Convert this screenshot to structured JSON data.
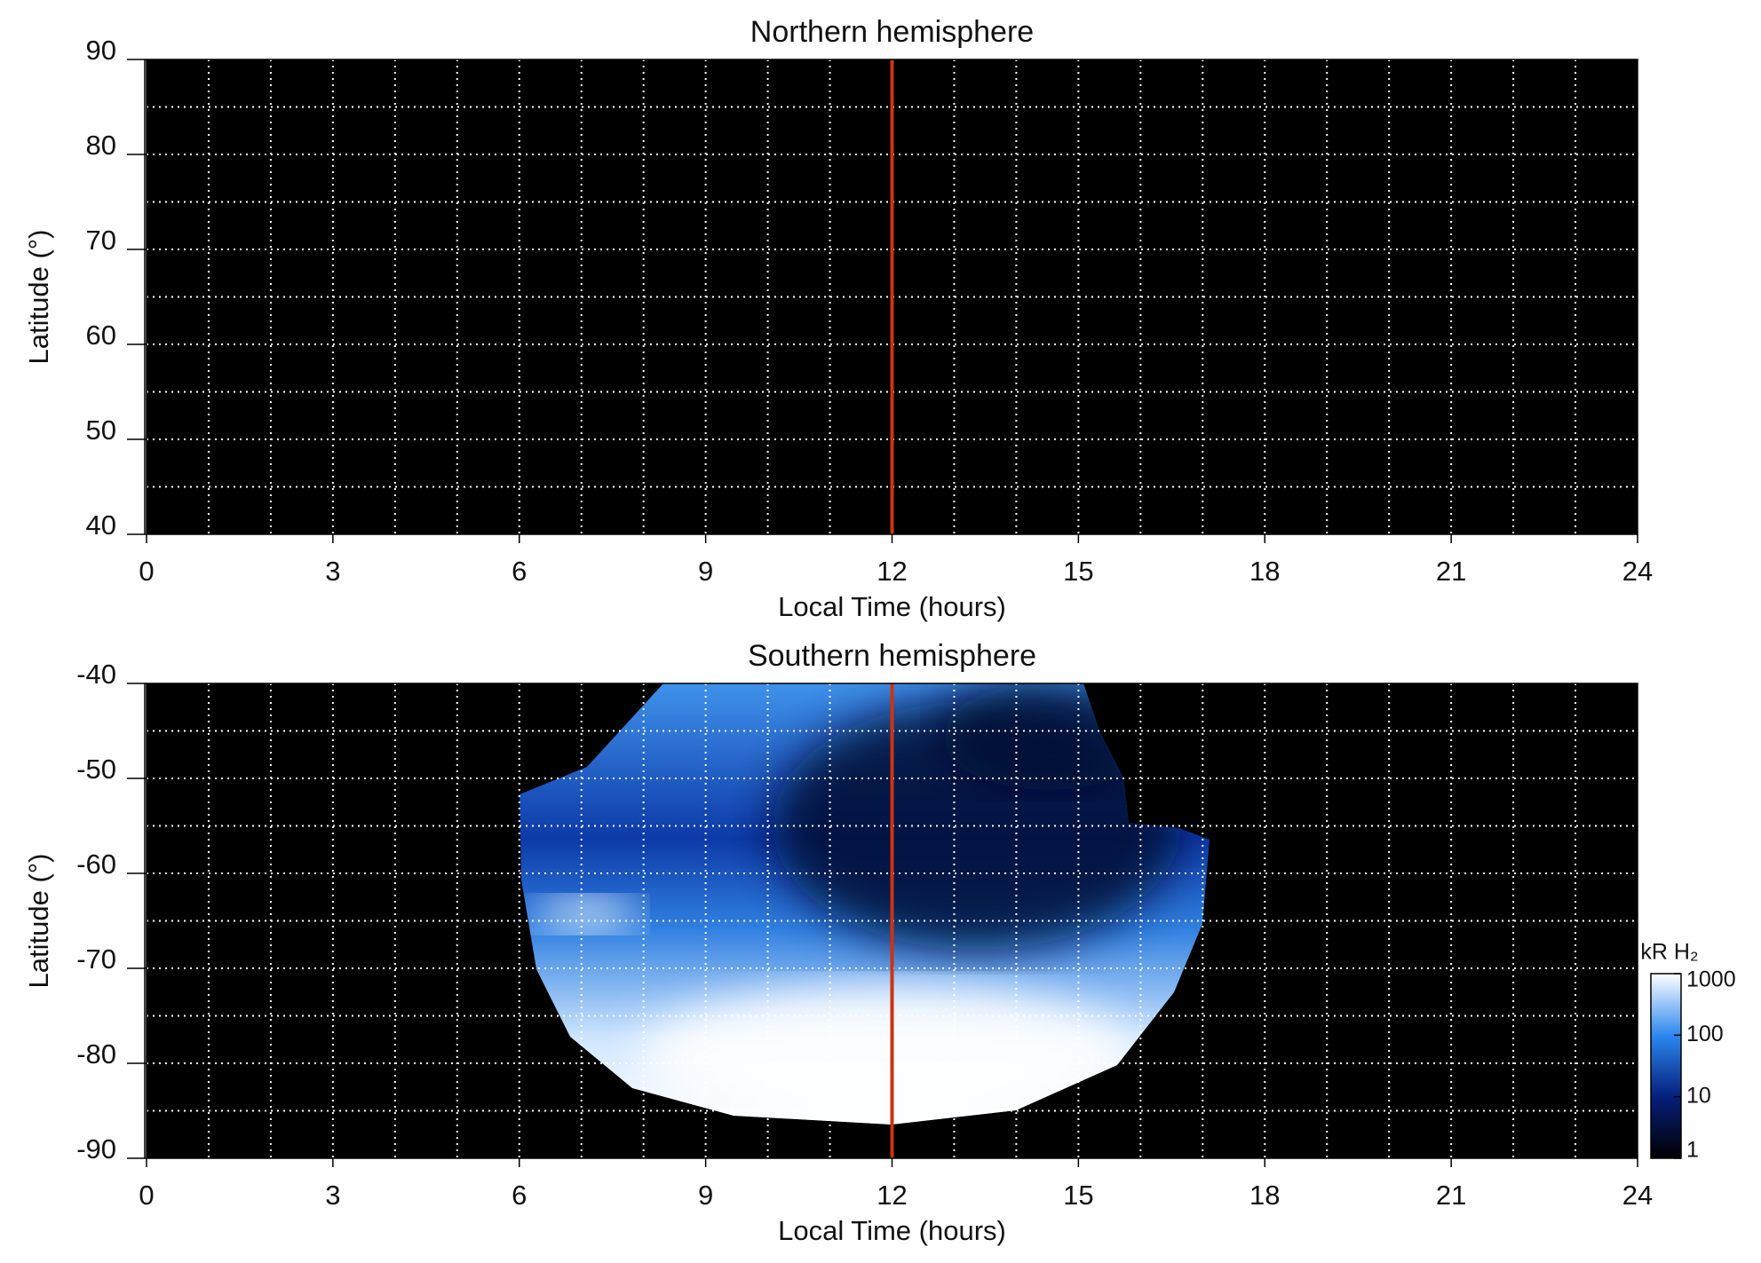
{
  "chart_data": [
    {
      "type": "heatmap",
      "title": "Northern hemisphere",
      "xlabel": "Local Time (hours)",
      "ylabel": "Latitude (°)",
      "xlim": [
        0,
        24
      ],
      "xticks": [
        0,
        3,
        6,
        9,
        12,
        15,
        18,
        21,
        24
      ],
      "ylim": [
        40,
        90
      ],
      "yticks": [
        40,
        50,
        60,
        70,
        80,
        90
      ],
      "grid": true,
      "minor_grid": {
        "x": 1,
        "y": 5
      },
      "vline": 12,
      "vline_color": "#cc3311"
    },
    {
      "type": "heatmap",
      "title": "Southern hemisphere",
      "xlabel": "Local Time (hours)",
      "ylabel": "Latitude (°)",
      "xlim": [
        0,
        24
      ],
      "xticks": [
        0,
        3,
        6,
        9,
        12,
        15,
        18,
        21,
        24
      ],
      "ylim": [
        -90,
        -40
      ],
      "yticks": [
        -90,
        -80,
        -70,
        -60,
        -50,
        -40
      ],
      "grid": true,
      "minor_grid": {
        "x": 1,
        "y": 5
      },
      "vline": 12,
      "vline_color": "#cc3311",
      "colorbar": {
        "label": "kR H₂",
        "log_scale": true,
        "lim": [
          1,
          1000
        ],
        "ticks": [
          1,
          10,
          100,
          1000
        ]
      }
    }
  ]
}
